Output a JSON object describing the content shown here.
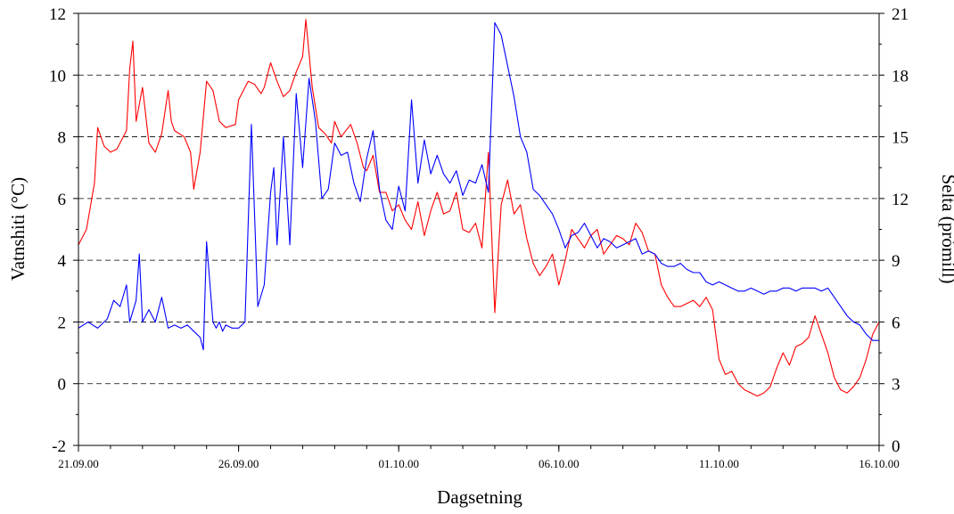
{
  "chart_data": {
    "type": "line",
    "title": "",
    "xlabel": "Dagsetning",
    "ylabel_left": "Vatnshiti (°C)",
    "ylabel_right": "Selta (prómill)",
    "x_ticks": [
      "21.09.00",
      "26.09.00",
      "01.10.00",
      "06.10.00",
      "11.10.00",
      "16.10.00"
    ],
    "xlim_days": [
      0,
      25
    ],
    "ylim_left": [
      -2,
      12
    ],
    "yticks_left": [
      "-2",
      "0",
      "2",
      "4",
      "6",
      "8",
      "10",
      "12"
    ],
    "ylim_right": [
      0,
      21
    ],
    "yticks_right": [
      "0",
      "3",
      "6",
      "9",
      "12",
      "15",
      "18",
      "21"
    ],
    "grid": "horizontal-dashed",
    "series": [
      {
        "color": "#ff0000",
        "axis": "left",
        "x": [
          0,
          0.25,
          0.5,
          0.6,
          0.8,
          1.0,
          1.2,
          1.5,
          1.6,
          1.7,
          1.8,
          2.0,
          2.2,
          2.4,
          2.6,
          2.8,
          2.9,
          3.0,
          3.3,
          3.5,
          3.6,
          3.8,
          4.0,
          4.2,
          4.4,
          4.6,
          4.9,
          5.0,
          5.3,
          5.5,
          5.7,
          5.8,
          6.0,
          6.2,
          6.4,
          6.6,
          6.8,
          7.0,
          7.1,
          7.3,
          7.5,
          7.7,
          7.9,
          8.0,
          8.2,
          8.5,
          8.7,
          8.9,
          9.0,
          9.2,
          9.4,
          9.6,
          9.8,
          10.0,
          10.2,
          10.4,
          10.6,
          10.8,
          11.0,
          11.2,
          11.4,
          11.6,
          11.8,
          12.0,
          12.2,
          12.4,
          12.6,
          12.8,
          13.0,
          13.2,
          13.4,
          13.6,
          13.8,
          14.0,
          14.2,
          14.4,
          14.6,
          14.8,
          15.0,
          15.2,
          15.4,
          15.6,
          15.8,
          16.0,
          16.2,
          16.4,
          16.6,
          16.8,
          17.0,
          17.2,
          17.4,
          17.6,
          17.8,
          18.0,
          18.2,
          18.4,
          18.6,
          18.8,
          19.0,
          19.2,
          19.4,
          19.6,
          19.8,
          20.0,
          20.2,
          20.4,
          20.6,
          20.8,
          21.0,
          21.2,
          21.4,
          21.6,
          21.8,
          22.0,
          22.2,
          22.4,
          22.6,
          22.8,
          23.0,
          23.2,
          23.4,
          23.6,
          23.8,
          24.0,
          24.2,
          24.4,
          24.6,
          24.8,
          25.0
        ],
        "values": [
          4.5,
          5.0,
          6.5,
          8.3,
          7.7,
          7.5,
          7.6,
          8.2,
          10.2,
          11.1,
          8.5,
          9.6,
          7.8,
          7.5,
          8.1,
          9.5,
          8.5,
          8.2,
          8.0,
          7.5,
          6.3,
          7.5,
          9.8,
          9.5,
          8.5,
          8.3,
          8.4,
          9.2,
          9.8,
          9.7,
          9.4,
          9.6,
          10.4,
          9.8,
          9.3,
          9.5,
          10.1,
          10.6,
          11.8,
          9.6,
          8.3,
          8.1,
          7.8,
          8.5,
          8.0,
          8.4,
          7.8,
          7.0,
          6.9,
          7.4,
          6.2,
          6.2,
          5.6,
          5.8,
          5.3,
          5.0,
          5.9,
          4.8,
          5.6,
          6.2,
          5.5,
          5.6,
          6.2,
          5.0,
          4.9,
          5.2,
          4.4,
          7.5,
          2.3,
          5.8,
          6.6,
          5.5,
          5.8,
          4.7,
          3.9,
          3.5,
          3.8,
          4.2,
          3.2,
          4.0,
          5.0,
          4.7,
          4.4,
          4.8,
          5.0,
          4.2,
          4.5,
          4.8,
          4.7,
          4.5,
          5.2,
          4.9,
          4.3,
          4.2,
          3.2,
          2.8,
          2.5,
          2.5,
          2.6,
          2.7,
          2.5,
          2.8,
          2.4,
          0.8,
          0.3,
          0.4,
          0.0,
          -0.2,
          -0.3,
          -0.4,
          -0.3,
          -0.1,
          0.5,
          1.0,
          0.6,
          1.2,
          1.3,
          1.5,
          2.2,
          1.6,
          1.0,
          0.2,
          -0.2,
          -0.3,
          -0.1,
          0.2,
          0.8,
          1.6,
          2.0
        ]
      },
      {
        "color": "#0000ff",
        "axis": "left",
        "x": [
          0,
          0.3,
          0.6,
          0.9,
          1.1,
          1.3,
          1.5,
          1.6,
          1.8,
          1.9,
          2.0,
          2.2,
          2.4,
          2.6,
          2.8,
          3.0,
          3.2,
          3.4,
          3.6,
          3.8,
          3.9,
          4.0,
          4.2,
          4.3,
          4.4,
          4.5,
          4.6,
          4.8,
          5.0,
          5.2,
          5.4,
          5.6,
          5.8,
          6.0,
          6.1,
          6.2,
          6.4,
          6.6,
          6.8,
          7.0,
          7.2,
          7.4,
          7.6,
          7.8,
          8.0,
          8.2,
          8.4,
          8.6,
          8.8,
          9.0,
          9.2,
          9.4,
          9.6,
          9.8,
          10.0,
          10.2,
          10.4,
          10.6,
          10.8,
          11.0,
          11.2,
          11.4,
          11.6,
          11.8,
          12.0,
          12.2,
          12.4,
          12.6,
          12.8,
          13.0,
          13.2,
          13.4,
          13.6,
          13.8,
          14.0,
          14.2,
          14.4,
          14.6,
          14.8,
          15.0,
          15.2,
          15.4,
          15.6,
          15.8,
          16.0,
          16.2,
          16.4,
          16.6,
          16.8,
          17.0,
          17.2,
          17.4,
          17.6,
          17.8,
          18.0,
          18.2,
          18.4,
          18.6,
          18.8,
          19.0,
          19.2,
          19.4,
          19.6,
          19.8,
          20.0,
          20.2,
          20.4,
          20.6,
          20.8,
          21.0,
          21.2,
          21.4,
          21.6,
          21.8,
          22.0,
          22.2,
          22.4,
          22.6,
          22.8,
          23.0,
          23.2,
          23.4,
          23.6,
          23.8,
          24.0,
          24.2,
          24.4,
          24.6,
          24.8,
          25.0
        ],
        "values": [
          1.8,
          2.0,
          1.8,
          2.1,
          2.7,
          2.5,
          3.2,
          2.0,
          2.7,
          4.2,
          2.0,
          2.4,
          2.0,
          2.8,
          1.8,
          1.9,
          1.8,
          1.9,
          1.7,
          1.5,
          1.1,
          4.6,
          2.0,
          1.8,
          2.0,
          1.7,
          1.9,
          1.8,
          1.8,
          2.0,
          8.4,
          2.5,
          3.2,
          6.2,
          7.0,
          4.5,
          8.0,
          4.5,
          9.4,
          7.0,
          9.9,
          8.5,
          6.0,
          6.3,
          7.8,
          7.4,
          7.5,
          6.5,
          5.9,
          7.3,
          8.2,
          6.3,
          5.3,
          5.0,
          6.4,
          5.6,
          9.2,
          6.5,
          7.9,
          6.8,
          7.4,
          6.8,
          6.5,
          6.9,
          6.1,
          6.6,
          6.5,
          7.1,
          6.2,
          11.7,
          11.3,
          10.3,
          9.3,
          8.0,
          7.5,
          6.3,
          6.1,
          5.8,
          5.5,
          5.0,
          4.4,
          4.8,
          4.9,
          5.2,
          4.8,
          4.4,
          4.7,
          4.6,
          4.4,
          4.5,
          4.6,
          4.7,
          4.2,
          4.3,
          4.2,
          3.9,
          3.8,
          3.8,
          3.9,
          3.7,
          3.6,
          3.6,
          3.3,
          3.2,
          3.3,
          3.2,
          3.1,
          3.0,
          3.0,
          3.1,
          3.0,
          2.9,
          3.0,
          3.0,
          3.1,
          3.1,
          3.0,
          3.1,
          3.1,
          3.1,
          3.0,
          3.1,
          2.8,
          2.5,
          2.2,
          2.0,
          1.9,
          1.6,
          1.4,
          1.4
        ]
      }
    ]
  }
}
